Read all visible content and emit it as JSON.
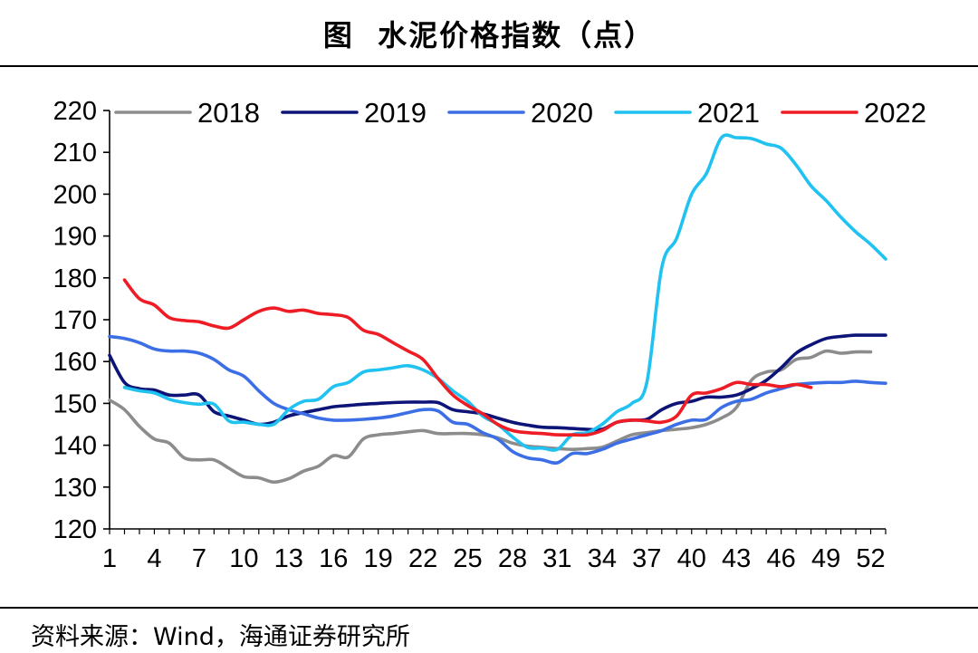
{
  "header": {
    "title": "图  水泥价格指数（点）"
  },
  "footer": {
    "source": "资料来源：Wind，海通证券研究所"
  },
  "chart_data": {
    "type": "line",
    "title": "图  水泥价格指数（点）",
    "xlabel": "",
    "ylabel": "",
    "xlim": [
      1,
      53
    ],
    "ylim": [
      120,
      220
    ],
    "x_ticks": [
      1,
      4,
      7,
      10,
      13,
      16,
      19,
      22,
      25,
      28,
      31,
      34,
      37,
      40,
      43,
      46,
      49,
      52
    ],
    "y_ticks": [
      120,
      130,
      140,
      150,
      160,
      170,
      180,
      190,
      200,
      210,
      220
    ],
    "legend": "top",
    "grid": false,
    "series": [
      {
        "name": "2018",
        "color": "#8c8c8c",
        "x": [
          1,
          2,
          3,
          4,
          5,
          6,
          7,
          8,
          9,
          10,
          11,
          12,
          13,
          14,
          15,
          16,
          17,
          18,
          19,
          20,
          21,
          22,
          23,
          24,
          25,
          26,
          27,
          28,
          29,
          30,
          31,
          32,
          33,
          34,
          35,
          36,
          37,
          38,
          39,
          40,
          41,
          42,
          43,
          44,
          45,
          46,
          47,
          48,
          49,
          50,
          51,
          52
        ],
        "values": [
          150.8,
          148.5,
          144.5,
          141.5,
          140.5,
          137.0,
          136.5,
          136.5,
          134.5,
          132.5,
          132.2,
          131.2,
          132.0,
          133.8,
          135.0,
          137.5,
          137.2,
          141.5,
          142.5,
          142.8,
          143.2,
          143.5,
          142.8,
          142.8,
          142.8,
          142.5,
          141.8,
          140.5,
          139.8,
          139.5,
          139.2,
          139.0,
          139.2,
          139.5,
          141.0,
          142.5,
          143.0,
          143.5,
          143.8,
          144.2,
          145.0,
          146.5,
          149.0,
          155.5,
          157.5,
          158.0,
          160.5,
          161.0,
          162.5,
          162.0,
          162.3,
          162.3
        ]
      },
      {
        "name": "2019",
        "color": "#0c1577",
        "x": [
          1,
          2,
          3,
          4,
          5,
          6,
          7,
          8,
          9,
          10,
          11,
          12,
          13,
          14,
          15,
          16,
          17,
          18,
          19,
          20,
          21,
          22,
          23,
          24,
          25,
          26,
          27,
          28,
          29,
          30,
          31,
          32,
          33,
          34,
          35,
          36,
          37,
          38,
          39,
          40,
          41,
          42,
          43,
          44,
          45,
          46,
          47,
          48,
          49,
          50,
          51,
          52,
          53
        ],
        "values": [
          161.5,
          155.0,
          153.5,
          153.2,
          152.0,
          152.0,
          152.0,
          148.0,
          147.0,
          146.0,
          145.0,
          145.5,
          147.0,
          147.8,
          148.5,
          149.2,
          149.5,
          149.8,
          150.0,
          150.2,
          150.3,
          150.3,
          150.2,
          148.5,
          148.0,
          147.5,
          146.5,
          145.5,
          144.8,
          144.3,
          144.2,
          144.0,
          143.8,
          143.8,
          145.5,
          146.0,
          146.2,
          148.5,
          150.0,
          150.5,
          151.5,
          151.5,
          152.0,
          153.5,
          155.5,
          158.5,
          162.0,
          164.0,
          165.5,
          166.0,
          166.3,
          166.3,
          166.3
        ]
      },
      {
        "name": "2020",
        "color": "#3c6fe6",
        "x": [
          1,
          2,
          3,
          4,
          5,
          6,
          7,
          8,
          9,
          10,
          11,
          12,
          13,
          14,
          15,
          16,
          17,
          18,
          19,
          20,
          21,
          22,
          23,
          24,
          25,
          26,
          27,
          28,
          29,
          30,
          31,
          32,
          33,
          34,
          35,
          36,
          37,
          38,
          39,
          40,
          41,
          42,
          43,
          44,
          45,
          46,
          47,
          48,
          49,
          50,
          51,
          52,
          53
        ],
        "values": [
          166.0,
          165.5,
          164.5,
          163.0,
          162.5,
          162.5,
          162.0,
          160.5,
          158.0,
          156.5,
          153.0,
          150.0,
          148.5,
          147.5,
          146.5,
          146.0,
          146.0,
          146.2,
          146.5,
          147.0,
          147.8,
          148.5,
          148.2,
          145.5,
          145.0,
          143.0,
          141.5,
          138.5,
          137.0,
          136.5,
          135.8,
          138.0,
          138.0,
          139.0,
          140.5,
          141.5,
          142.5,
          143.5,
          145.0,
          146.0,
          146.2,
          149.0,
          150.5,
          151.0,
          152.5,
          153.5,
          154.5,
          154.8,
          155.0,
          155.0,
          155.3,
          155.0,
          154.8
        ]
      },
      {
        "name": "2021",
        "color": "#1fc2f0",
        "x": [
          2,
          3,
          4,
          5,
          6,
          7,
          8,
          9,
          10,
          11,
          12,
          13,
          14,
          15,
          16,
          17,
          18,
          19,
          20,
          21,
          22,
          23,
          24,
          25,
          26,
          27,
          28,
          29,
          30,
          31,
          32,
          33,
          34,
          35,
          36,
          37,
          38,
          39,
          40,
          41,
          42,
          43,
          44,
          45,
          46,
          47,
          48,
          49,
          50,
          51,
          52,
          53
        ],
        "values": [
          153.8,
          153.0,
          152.5,
          151.0,
          150.2,
          149.8,
          149.8,
          145.8,
          145.5,
          145.0,
          145.0,
          148.5,
          150.5,
          151.0,
          154.0,
          155.0,
          157.5,
          158.0,
          158.5,
          159.0,
          158.0,
          156.0,
          153.0,
          150.5,
          147.0,
          145.0,
          142.0,
          139.5,
          139.3,
          139.0,
          142.5,
          143.0,
          145.0,
          148.0,
          150.0,
          155.0,
          182.5,
          189.5,
          200.0,
          205.0,
          213.5,
          213.5,
          213.3,
          212.0,
          211.0,
          207.0,
          202.0,
          198.5,
          194.5,
          191.0,
          188.0,
          184.5
        ]
      },
      {
        "name": "2022",
        "color": "#ee1c25",
        "x": [
          2,
          3,
          4,
          5,
          6,
          7,
          8,
          9,
          10,
          11,
          12,
          13,
          14,
          15,
          16,
          17,
          18,
          19,
          20,
          21,
          22,
          23,
          24,
          25,
          26,
          27,
          28,
          29,
          30,
          31,
          32,
          33,
          34,
          35,
          36,
          37,
          38,
          39,
          40,
          41,
          42,
          43,
          44,
          45,
          46,
          47,
          48
        ],
        "values": [
          179.5,
          175.0,
          173.5,
          170.5,
          169.8,
          169.5,
          168.5,
          168.0,
          170.0,
          172.0,
          172.8,
          172.0,
          172.3,
          171.5,
          171.2,
          170.5,
          167.5,
          166.5,
          164.5,
          162.5,
          160.5,
          156.0,
          152.0,
          149.5,
          147.5,
          145.0,
          143.5,
          143.0,
          142.8,
          142.5,
          142.5,
          142.5,
          143.5,
          145.5,
          146.0,
          145.8,
          145.5,
          147.0,
          152.0,
          152.5,
          153.5,
          155.0,
          154.5,
          154.5,
          154.0,
          154.5,
          153.8
        ]
      }
    ]
  }
}
